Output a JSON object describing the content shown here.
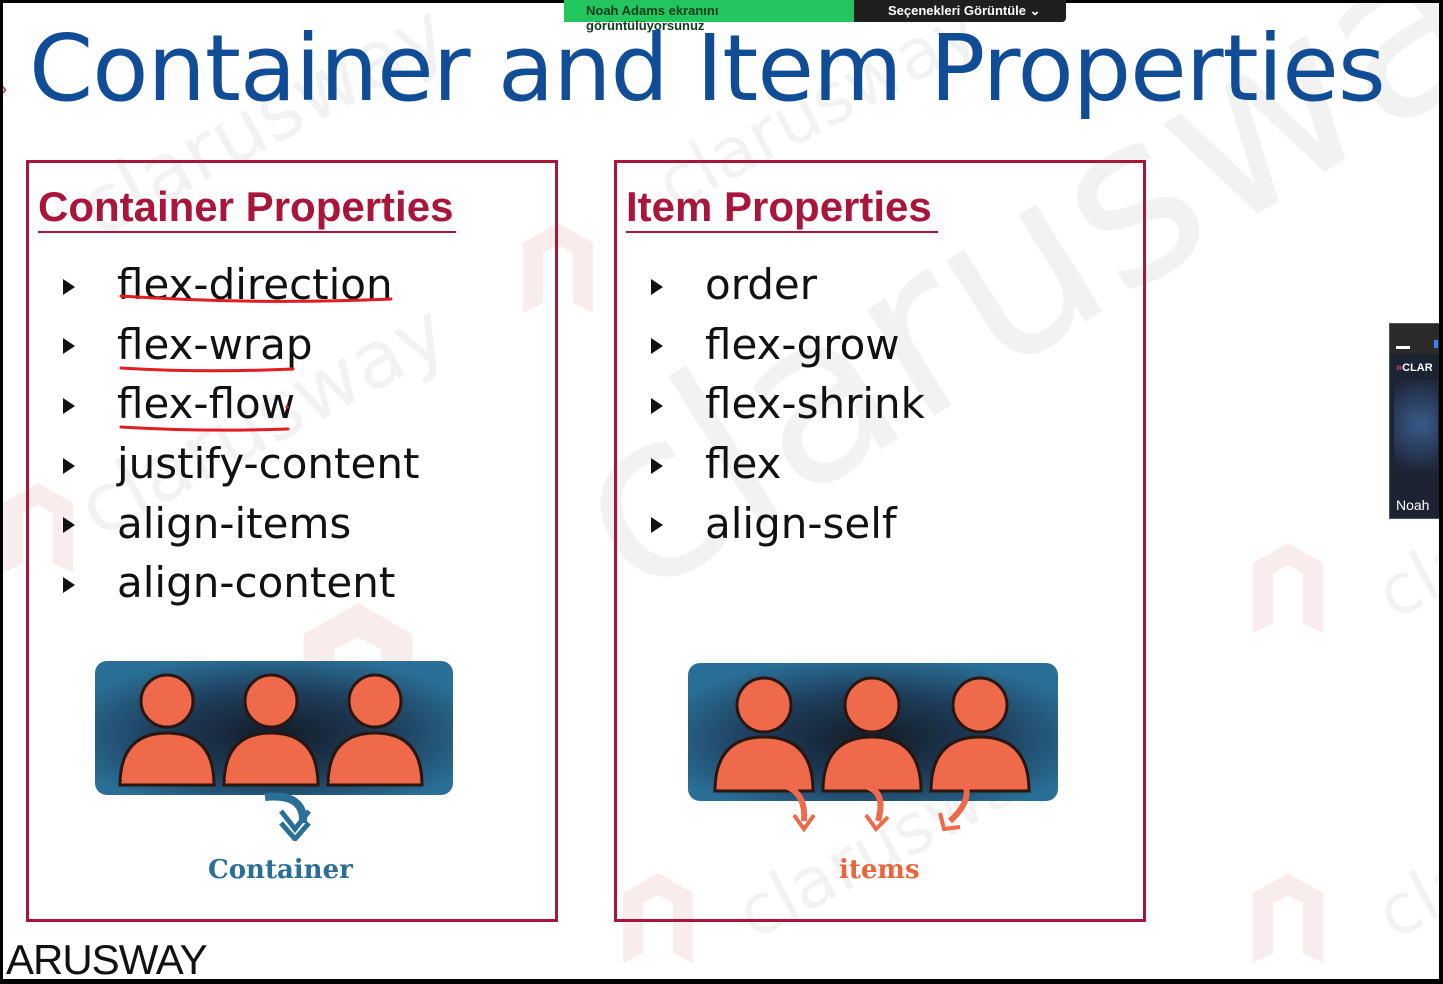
{
  "share_banner": {
    "status": "Noah Adams ekranını görüntülüyorsunuz",
    "options_label": "Seçenekleri Görüntüle",
    "chevron_icon": "chevron-down-icon"
  },
  "slide": {
    "title": "Container and Item Properties",
    "watermark": "clarusway",
    "brand_footer": "ARUSWAY",
    "container_panel": {
      "heading": "Container Properties",
      "items": [
        "flex-direction",
        "flex-wrap",
        "flex-flow",
        "justify-content",
        "align-items",
        "align-content"
      ],
      "caption": "Container"
    },
    "item_panel": {
      "heading": "Item Properties",
      "items": [
        "order",
        "flex-grow",
        "flex-shrink",
        "flex",
        "align-self"
      ],
      "caption": "items"
    },
    "colors": {
      "title": "#114c96",
      "panel_border": "#a9163c",
      "annotation": "#e31b23",
      "person": "#ee6a4a",
      "tray": "#2a6f96"
    }
  },
  "participant_video": {
    "name": "Noah",
    "logo_text": "CLAR"
  }
}
